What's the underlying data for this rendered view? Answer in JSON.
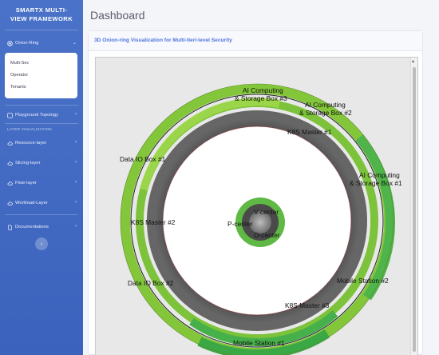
{
  "sidebar": {
    "brand_line1": "SMARTX MULTI-",
    "brand_line2": "VIEW FRAMEWORK",
    "onion_ring": "Onion-Ring",
    "submenu": [
      "Multi-Sec",
      "Operator",
      "Tenants"
    ],
    "playground": "Playground Topology",
    "section": "LAYER VISUALIZATION",
    "items": [
      "Resource-layer",
      "Slicing-layer",
      "Flow-layer",
      "Workload-Layer"
    ],
    "documentations": "Documentations",
    "collapse_icon": "chevron-left-icon"
  },
  "main": {
    "title": "Dashboard",
    "card_title": "3D Onion-ring Visualization for Multi-tier/-level Security"
  },
  "viz": {
    "labels": {
      "ai1": [
        "AI Computing",
        "& Storage Box #1"
      ],
      "ai2": [
        "AI Computing",
        "& Storage Box #2"
      ],
      "ai3": [
        "AI Computing",
        "& Storage Box #3"
      ],
      "k8s1": "K8S Master #1",
      "k8s2": "K8S Master #2",
      "k8s3": "K8S Master #3",
      "dataio1": "Data IO Box #1",
      "dataio2": "Data IO Box #2",
      "mobile1": "Mobile Station #1",
      "mobile2": "Mobile Station #2",
      "vcenter": "V-center",
      "pcenter": "P-center",
      "ocenter": "O-center"
    },
    "colors": {
      "lime": "#8ccf3c",
      "green": "#3fae4a",
      "dark_ring": "#4e4e4e",
      "accent": "#4e73df"
    }
  }
}
